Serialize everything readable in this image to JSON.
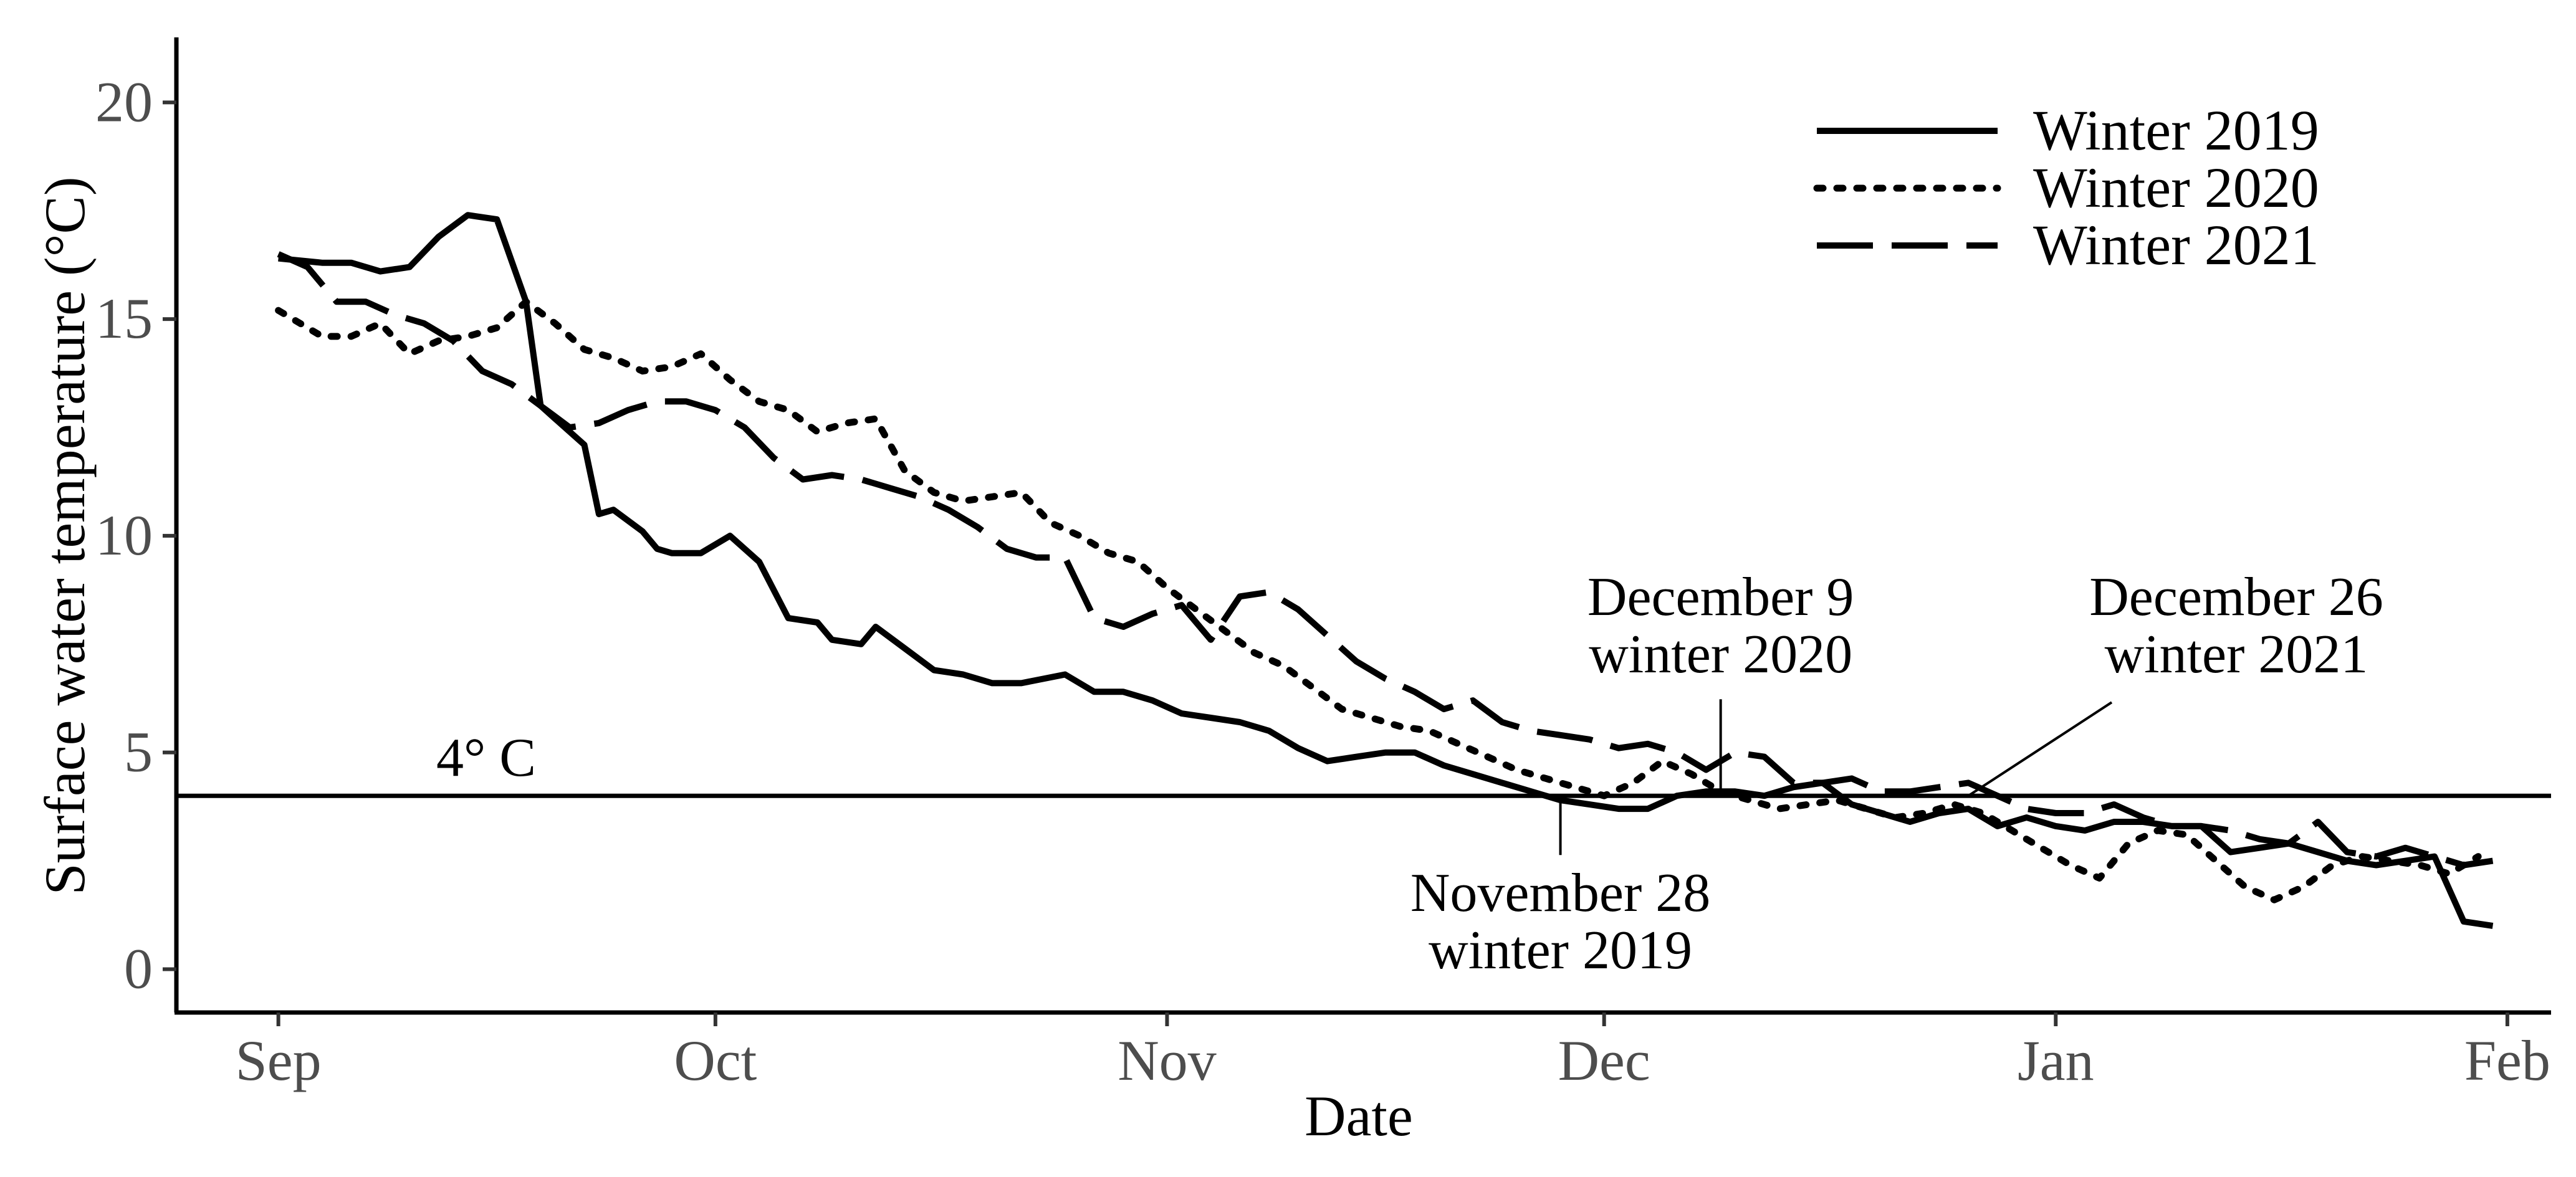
{
  "chart_data": {
    "type": "line",
    "xlabel": "Date",
    "ylabel": "Surface water temperature (°C)",
    "x_ticks": [
      "Sep",
      "Oct",
      "Nov",
      "Dec",
      "Jan",
      "Feb"
    ],
    "x_tick_dates": [
      "2019-09-01",
      "2019-10-01",
      "2019-11-01",
      "2019-12-01",
      "2020-01-01",
      "2020-02-01"
    ],
    "y_ticks": [
      "0",
      "5",
      "10",
      "15",
      "20"
    ],
    "ylim": [
      -1,
      21.5
    ],
    "xlim": [
      "2019-08-25",
      "2020-02-04"
    ],
    "grid": false,
    "legend_position": "top-right",
    "hline": {
      "y": 4,
      "label": "4° C"
    },
    "series": [
      {
        "name": "Winter 2019",
        "style": "solid",
        "x": [
          "2019-09-01",
          "2019-09-04",
          "2019-09-06",
          "2019-09-08",
          "2019-09-10",
          "2019-09-12",
          "2019-09-14",
          "2019-09-16",
          "2019-09-18",
          "2019-09-19",
          "2019-09-20",
          "2019-09-22",
          "2019-09-23",
          "2019-09-24",
          "2019-09-26",
          "2019-09-27",
          "2019-09-28",
          "2019-09-30",
          "2019-10-02",
          "2019-10-04",
          "2019-10-06",
          "2019-10-08",
          "2019-10-09",
          "2019-10-11",
          "2019-10-12",
          "2019-10-14",
          "2019-10-16",
          "2019-10-18",
          "2019-10-20",
          "2019-10-22",
          "2019-10-25",
          "2019-10-27",
          "2019-10-29",
          "2019-10-31",
          "2019-11-02",
          "2019-11-04",
          "2019-11-06",
          "2019-11-08",
          "2019-11-10",
          "2019-11-12",
          "2019-11-14",
          "2019-11-16",
          "2019-11-18",
          "2019-11-20",
          "2019-11-22",
          "2019-11-24",
          "2019-11-26",
          "2019-11-28",
          "2019-11-30",
          "2019-12-02",
          "2019-12-04",
          "2019-12-06",
          "2019-12-08",
          "2019-12-10",
          "2019-12-12",
          "2019-12-14",
          "2019-12-16",
          "2019-12-18",
          "2019-12-20",
          "2019-12-22",
          "2019-12-24",
          "2019-12-26",
          "2019-12-28",
          "2019-12-30",
          "2020-01-01",
          "2020-01-03",
          "2020-01-05",
          "2020-01-07",
          "2020-01-09",
          "2020-01-11",
          "2020-01-13",
          "2020-01-15",
          "2020-01-17",
          "2020-01-19",
          "2020-01-21",
          "2020-01-23",
          "2020-01-25",
          "2020-01-27",
          "2020-01-29",
          "2020-01-31"
        ],
        "values": [
          16.4,
          16.3,
          16.3,
          16.1,
          16.2,
          16.9,
          17.4,
          17.3,
          15.4,
          13.0,
          12.7,
          12.1,
          10.5,
          10.6,
          10.1,
          9.7,
          9.6,
          9.6,
          10.0,
          9.4,
          8.1,
          8.0,
          7.6,
          7.5,
          7.9,
          7.4,
          6.9,
          6.8,
          6.6,
          6.6,
          6.8,
          6.4,
          6.4,
          6.2,
          5.9,
          5.8,
          5.7,
          5.5,
          5.1,
          4.8,
          4.9,
          5.0,
          5.0,
          4.7,
          4.5,
          4.3,
          4.1,
          3.9,
          3.8,
          3.7,
          3.7,
          4.0,
          4.1,
          4.1,
          4.0,
          4.2,
          4.3,
          3.8,
          3.6,
          3.4,
          3.6,
          3.7,
          3.3,
          3.5,
          3.3,
          3.2,
          3.4,
          3.4,
          3.3,
          3.3,
          2.7,
          2.8,
          2.9,
          2.7,
          2.5,
          2.4,
          2.5,
          2.6,
          1.1,
          1.0
        ]
      },
      {
        "name": "Winter 2020",
        "style": "dotted",
        "x": [
          "2019-09-01",
          "2019-09-04",
          "2019-09-06",
          "2019-09-08",
          "2019-09-10",
          "2019-09-12",
          "2019-09-14",
          "2019-09-16",
          "2019-09-18",
          "2019-09-20",
          "2019-09-22",
          "2019-09-24",
          "2019-09-26",
          "2019-09-28",
          "2019-09-30",
          "2019-10-02",
          "2019-10-04",
          "2019-10-06",
          "2019-10-08",
          "2019-10-10",
          "2019-10-12",
          "2019-10-14",
          "2019-10-16",
          "2019-10-18",
          "2019-10-20",
          "2019-10-22",
          "2019-10-24",
          "2019-10-26",
          "2019-10-28",
          "2019-10-30",
          "2019-11-01",
          "2019-11-03",
          "2019-11-05",
          "2019-11-07",
          "2019-11-09",
          "2019-11-11",
          "2019-11-13",
          "2019-11-15",
          "2019-11-17",
          "2019-11-19",
          "2019-11-21",
          "2019-11-23",
          "2019-11-25",
          "2019-11-27",
          "2019-11-29",
          "2019-12-01",
          "2019-12-03",
          "2019-12-05",
          "2019-12-07",
          "2019-12-09",
          "2019-12-11",
          "2019-12-13",
          "2019-12-15",
          "2019-12-17",
          "2019-12-19",
          "2019-12-21",
          "2019-12-23",
          "2019-12-25",
          "2019-12-27",
          "2019-12-29",
          "2019-12-31",
          "2020-01-02",
          "2020-01-04",
          "2020-01-06",
          "2020-01-08",
          "2020-01-10",
          "2020-01-12",
          "2020-01-14",
          "2020-01-16",
          "2020-01-18",
          "2020-01-20",
          "2020-01-22",
          "2020-01-24",
          "2020-01-26",
          "2020-01-28",
          "2020-01-30"
        ],
        "values": [
          15.2,
          14.6,
          14.6,
          14.9,
          14.2,
          14.5,
          14.6,
          14.8,
          15.4,
          14.9,
          14.3,
          14.1,
          13.8,
          13.9,
          14.2,
          13.6,
          13.1,
          12.9,
          12.4,
          12.6,
          12.7,
          11.5,
          11.0,
          10.8,
          10.9,
          11.0,
          10.3,
          10.0,
          9.6,
          9.4,
          8.8,
          8.3,
          7.8,
          7.3,
          7.0,
          6.5,
          6.0,
          5.8,
          5.6,
          5.5,
          5.2,
          4.9,
          4.6,
          4.4,
          4.2,
          4.0,
          4.3,
          4.8,
          4.5,
          4.1,
          3.9,
          3.7,
          3.8,
          3.9,
          3.7,
          3.5,
          3.6,
          3.8,
          3.6,
          3.2,
          2.8,
          2.4,
          2.1,
          2.9,
          3.2,
          3.1,
          2.5,
          1.9,
          1.6,
          1.9,
          2.4,
          2.6,
          2.5,
          2.4,
          2.2,
          2.6
        ]
      },
      {
        "name": "Winter 2021",
        "style": "dashed",
        "x": [
          "2019-09-01",
          "2019-09-03",
          "2019-09-05",
          "2019-09-07",
          "2019-09-09",
          "2019-09-11",
          "2019-09-13",
          "2019-09-15",
          "2019-09-17",
          "2019-09-19",
          "2019-09-21",
          "2019-09-23",
          "2019-09-25",
          "2019-09-27",
          "2019-09-29",
          "2019-10-01",
          "2019-10-03",
          "2019-10-05",
          "2019-10-07",
          "2019-10-09",
          "2019-10-11",
          "2019-10-13",
          "2019-10-15",
          "2019-10-17",
          "2019-10-19",
          "2019-10-21",
          "2019-10-23",
          "2019-10-25",
          "2019-10-27",
          "2019-10-29",
          "2019-10-31",
          "2019-11-02",
          "2019-11-04",
          "2019-11-06",
          "2019-11-08",
          "2019-11-10",
          "2019-11-12",
          "2019-11-14",
          "2019-11-16",
          "2019-11-18",
          "2019-11-20",
          "2019-11-22",
          "2019-11-24",
          "2019-11-26",
          "2019-11-28",
          "2019-11-30",
          "2019-12-02",
          "2019-12-04",
          "2019-12-06",
          "2019-12-08",
          "2019-12-10",
          "2019-12-12",
          "2019-12-14",
          "2019-12-16",
          "2019-12-18",
          "2019-12-20",
          "2019-12-22",
          "2019-12-24",
          "2019-12-26",
          "2019-12-28",
          "2019-12-30",
          "2020-01-01",
          "2020-01-03",
          "2020-01-05",
          "2020-01-07",
          "2020-01-09",
          "2020-01-11",
          "2020-01-13",
          "2020-01-15",
          "2020-01-17",
          "2020-01-19",
          "2020-01-21",
          "2020-01-23",
          "2020-01-25",
          "2020-01-27",
          "2020-01-29",
          "2020-01-31"
        ],
        "values": [
          16.5,
          16.2,
          15.4,
          15.4,
          15.1,
          14.9,
          14.5,
          13.8,
          13.5,
          13.0,
          12.5,
          12.6,
          12.9,
          13.1,
          13.1,
          12.9,
          12.5,
          11.8,
          11.3,
          11.4,
          11.3,
          11.1,
          10.9,
          10.6,
          10.2,
          9.7,
          9.5,
          9.5,
          8.1,
          7.9,
          8.2,
          8.4,
          7.6,
          8.6,
          8.7,
          8.3,
          7.7,
          7.1,
          6.7,
          6.4,
          6.0,
          6.2,
          5.7,
          5.5,
          5.4,
          5.3,
          5.1,
          5.2,
          5.0,
          4.6,
          5.0,
          4.9,
          4.3,
          4.3,
          4.4,
          4.1,
          4.1,
          4.2,
          4.3,
          4.0,
          3.7,
          3.6,
          3.6,
          3.8,
          3.5,
          3.3,
          3.3,
          3.2,
          3.0,
          2.9,
          3.4,
          2.7,
          2.6,
          2.8,
          2.6,
          2.4,
          2.5
        ]
      }
    ],
    "annotations": [
      {
        "text_lines": [
          "December 9",
          "winter 2020"
        ],
        "date": "2019-12-09",
        "y": 4.0
      },
      {
        "text_lines": [
          "December 26",
          "winter 2021"
        ],
        "date": "2019-12-26",
        "y": 4.0
      },
      {
        "text_lines": [
          "November 28",
          "winter 2019"
        ],
        "date": "2019-11-28",
        "y": 4.0
      }
    ]
  }
}
